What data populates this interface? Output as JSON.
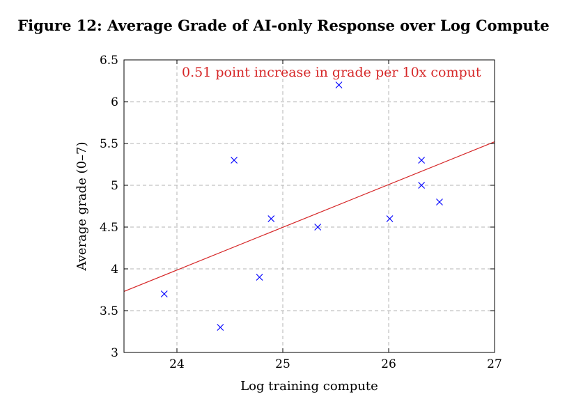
{
  "figure_title": "Figure 12: Average Grade of AI-only Response over Log Compute",
  "colors": {
    "points": "#0000ff",
    "trend": "#d62728",
    "grid": "#b3b3b3",
    "axis": "#000000"
  },
  "chart_data": {
    "type": "scatter",
    "title": "Figure 12: Average Grade of AI-only Response over Log Compute",
    "xlabel": "Log training compute",
    "ylabel": "Average grade (0–7)",
    "xlim": [
      23.5,
      27
    ],
    "ylim": [
      3,
      6.5
    ],
    "xticks": [
      24,
      25,
      26,
      27
    ],
    "yticks": [
      3,
      3.5,
      4,
      4.5,
      5,
      5.5,
      6,
      6.5
    ],
    "xtick_labels": [
      "24",
      "25",
      "26",
      "27"
    ],
    "ytick_labels": [
      "3",
      "3.5",
      "4",
      "4.5",
      "5",
      "5.5",
      "6",
      "6.5"
    ],
    "grid": true,
    "points": [
      {
        "x": 23.88,
        "y": 3.7
      },
      {
        "x": 24.41,
        "y": 3.3
      },
      {
        "x": 24.54,
        "y": 5.3
      },
      {
        "x": 24.78,
        "y": 3.9
      },
      {
        "x": 24.89,
        "y": 4.6
      },
      {
        "x": 25.33,
        "y": 4.5
      },
      {
        "x": 25.53,
        "y": 6.2
      },
      {
        "x": 26.01,
        "y": 4.6
      },
      {
        "x": 26.31,
        "y": 5.3
      },
      {
        "x": 26.31,
        "y": 5.0
      },
      {
        "x": 26.48,
        "y": 4.8
      }
    ],
    "trend_line": {
      "x": [
        23.5,
        27
      ],
      "y": [
        3.73,
        5.52
      ]
    },
    "annotation": "0.51 point increase in grade per 10x comput"
  }
}
